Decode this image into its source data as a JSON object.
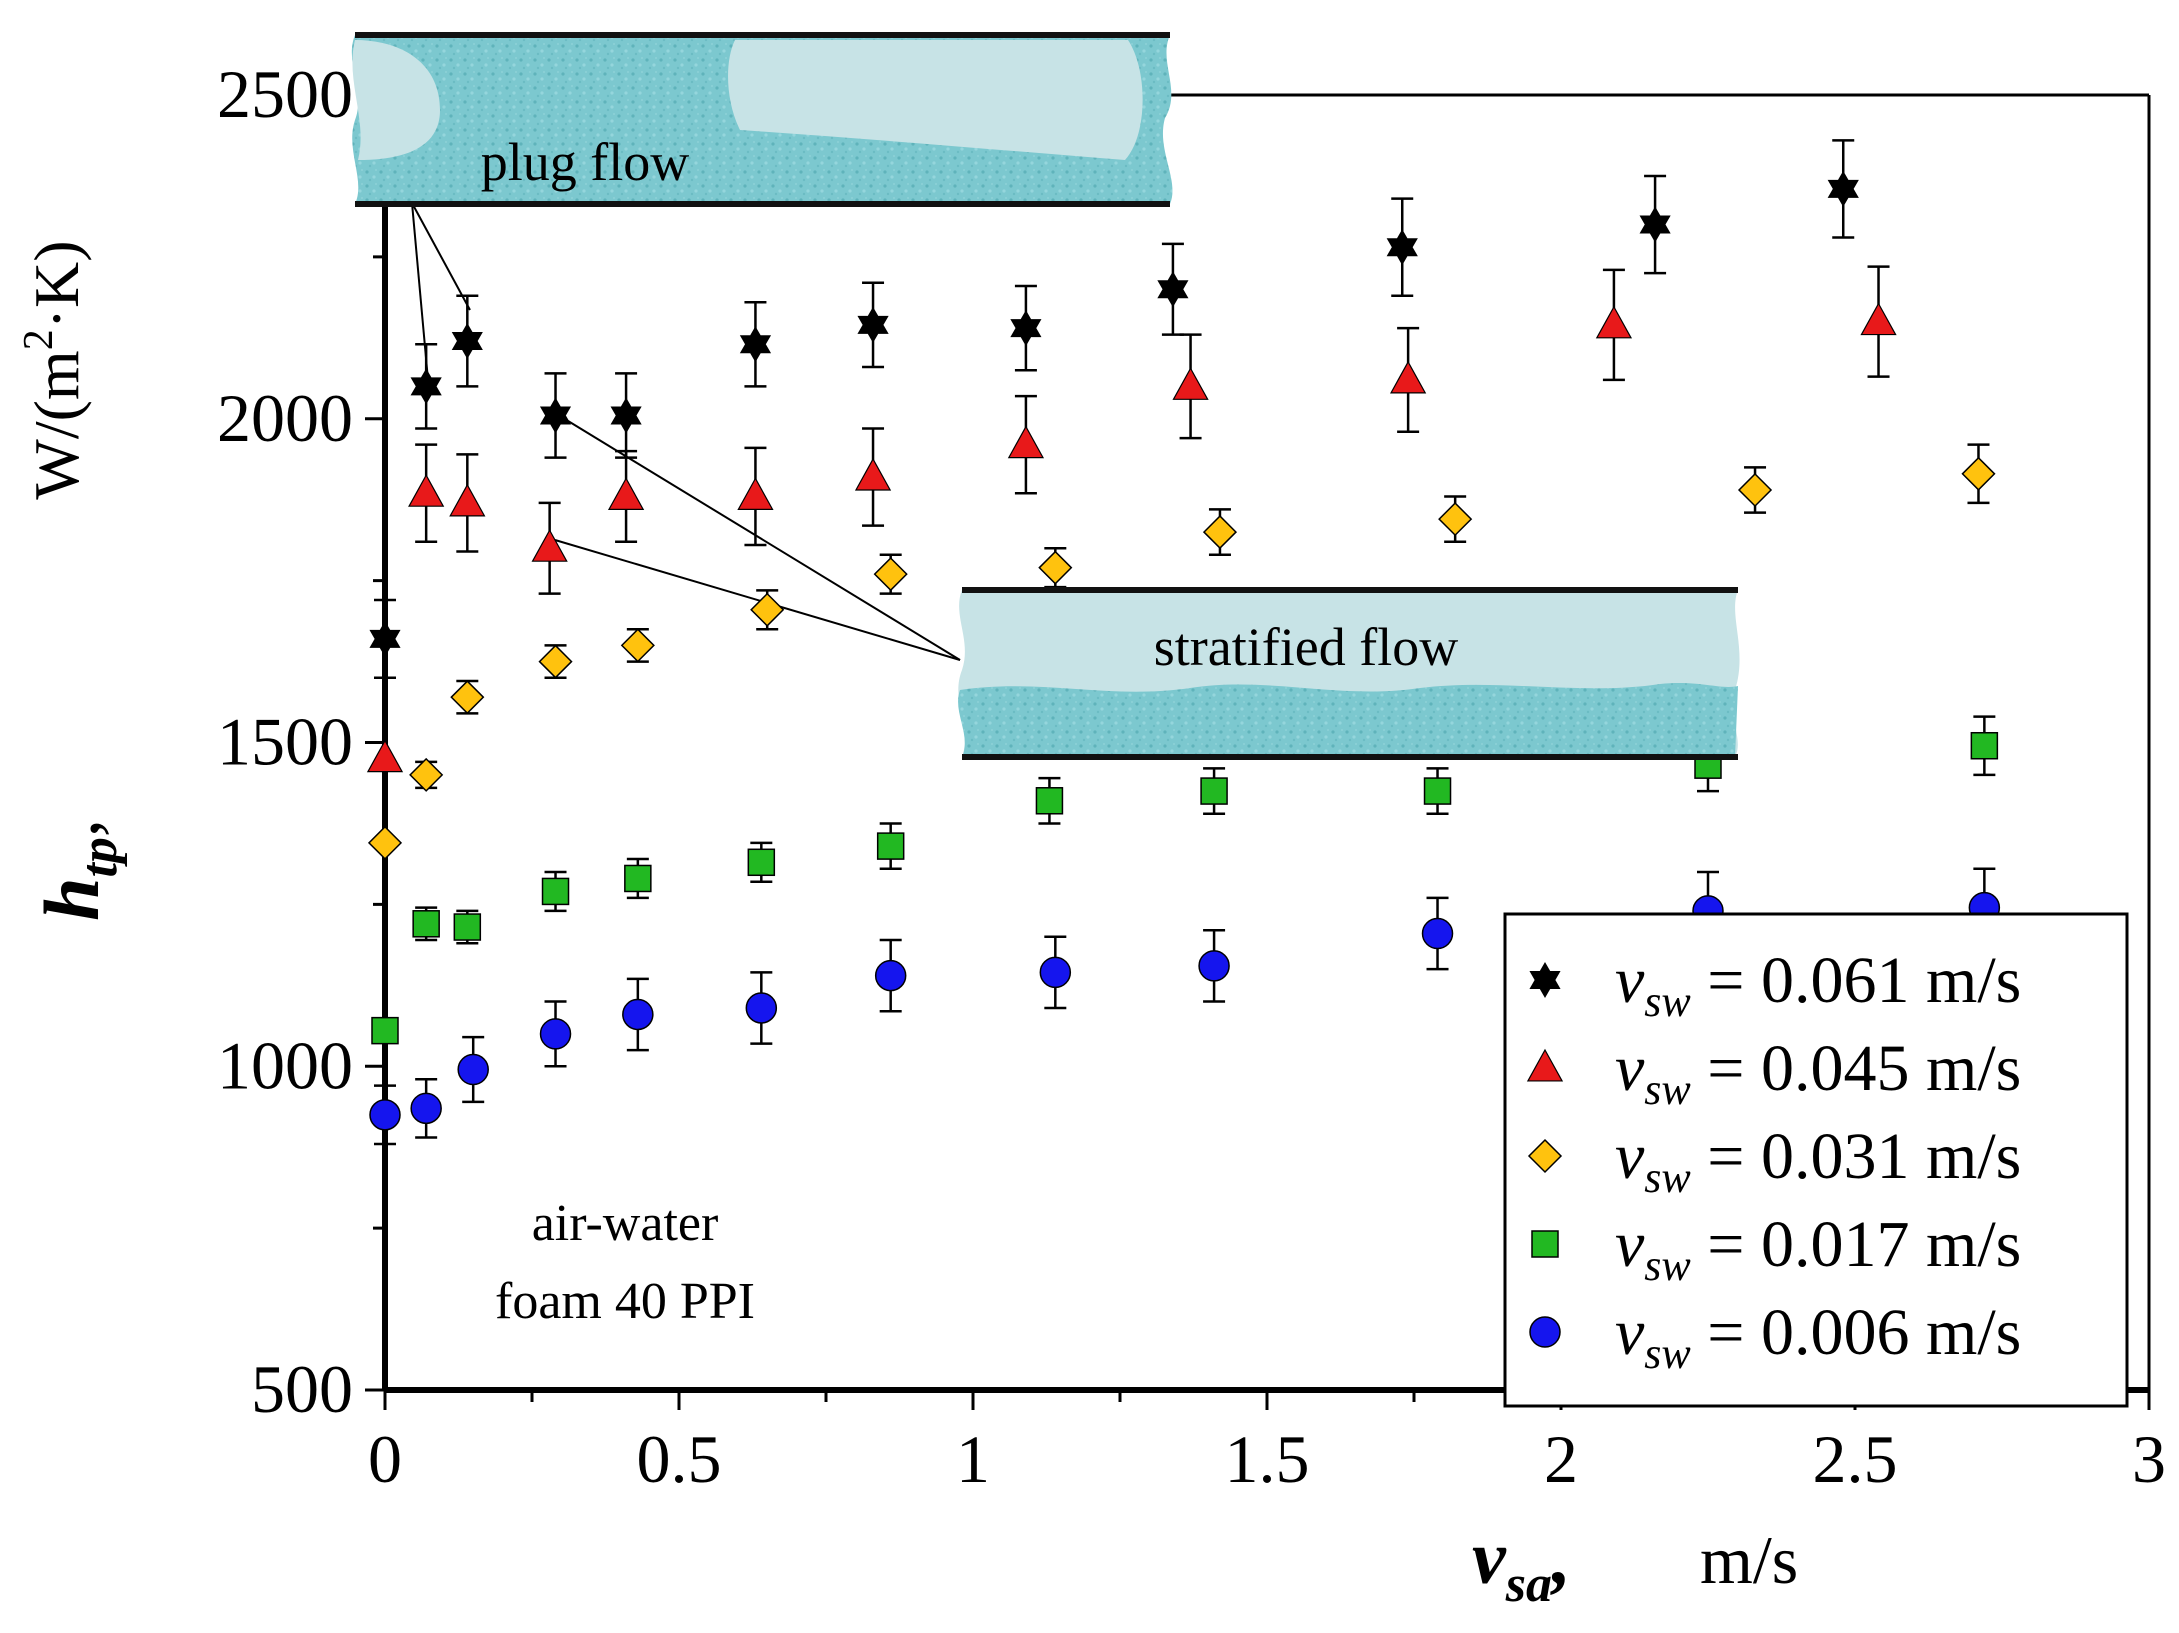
{
  "chart_data": {
    "type": "scatter",
    "title": "",
    "xlabel": {
      "symbol": "v",
      "subscript": "sa",
      "unit": "m/s"
    },
    "ylabel": {
      "symbol": "h",
      "subscript": "tp",
      "unit_prefix": "W/(m",
      "unit_sup": "2",
      "unit_suffix": "·K)"
    },
    "xlim": [
      0,
      3
    ],
    "ylim": [
      500,
      2500
    ],
    "x_ticks": [
      {
        "value": 0,
        "label": "0"
      },
      {
        "value": 0.5,
        "label": "0.5"
      },
      {
        "value": 1,
        "label": "1"
      },
      {
        "value": 1.5,
        "label": "1.5"
      },
      {
        "value": 2,
        "label": "2"
      },
      {
        "value": 2.5,
        "label": "2.5"
      },
      {
        "value": 3,
        "label": "3"
      }
    ],
    "y_ticks": [
      {
        "value": 500,
        "label": "500"
      },
      {
        "value": 1000,
        "label": "1000"
      },
      {
        "value": 1500,
        "label": "1500"
      },
      {
        "value": 2000,
        "label": "2000"
      },
      {
        "value": 2500,
        "label": "2500"
      }
    ],
    "x_minor_step": 0.25,
    "y_minor_step": 250,
    "grid": false,
    "legend_position": "bottom-right",
    "series": [
      {
        "name": "v_sw = 0.061 m/s",
        "legend": {
          "symbol": "v",
          "subscript": "sw",
          "text": " = 0.061 m/s"
        },
        "marker": "star",
        "color": "#000000",
        "x": [
          0,
          0.07,
          0.14,
          0.29,
          0.41,
          0.63,
          0.83,
          1.09,
          1.34,
          1.73,
          2.16,
          2.48
        ],
        "y": [
          1660,
          2050,
          2120,
          2005,
          2005,
          2115,
          2145,
          2140,
          2200,
          2265,
          2300,
          2355
        ],
        "err": [
          60,
          65,
          70,
          65,
          65,
          65,
          65,
          65,
          70,
          75,
          75,
          75
        ]
      },
      {
        "name": "v_sw = 0.045 m/s",
        "legend": {
          "symbol": "v",
          "subscript": "sw",
          "text": " = 0.045 m/s"
        },
        "marker": "triangle",
        "color": "#e8191a",
        "x": [
          0,
          0.07,
          0.14,
          0.28,
          0.41,
          0.63,
          0.83,
          1.09,
          1.37,
          1.74,
          2.09,
          2.54
        ],
        "y": [
          1475,
          1885,
          1870,
          1800,
          1880,
          1880,
          1910,
          1960,
          2050,
          2060,
          2145,
          2150
        ],
        "err": [
          0,
          75,
          75,
          70,
          70,
          75,
          75,
          75,
          80,
          80,
          85,
          85
        ]
      },
      {
        "name": "v_sw = 0.031 m/s",
        "legend": {
          "symbol": "v",
          "subscript": "sw",
          "text": " = 0.031 m/s"
        },
        "marker": "diamond",
        "color": "#ffc20e",
        "x": [
          0,
          0.07,
          0.14,
          0.29,
          0.43,
          0.65,
          0.86,
          1.14,
          1.42,
          1.82,
          2.33,
          2.71
        ],
        "y": [
          1345,
          1450,
          1570,
          1625,
          1650,
          1705,
          1760,
          1770,
          1825,
          1845,
          1890,
          1915
        ],
        "err": [
          0,
          20,
          25,
          25,
          25,
          30,
          30,
          30,
          35,
          35,
          35,
          45
        ]
      },
      {
        "name": "v_sw = 0.017 m/s",
        "legend": {
          "symbol": "v",
          "subscript": "sw",
          "text": " = 0.017 m/s"
        },
        "marker": "square",
        "color": "#22b822",
        "x": [
          0,
          0.07,
          0.14,
          0.29,
          0.43,
          0.64,
          0.86,
          1.13,
          1.41,
          1.79,
          2.25,
          2.72
        ],
        "y": [
          1055,
          1220,
          1215,
          1270,
          1290,
          1315,
          1340,
          1410,
          1425,
          1425,
          1465,
          1495
        ],
        "err": [
          0,
          25,
          25,
          30,
          30,
          30,
          35,
          35,
          35,
          35,
          40,
          45
        ]
      },
      {
        "name": "v_sw = 0.006 m/s",
        "legend": {
          "symbol": "v",
          "subscript": "sw",
          "text": " = 0.006 m/s"
        },
        "marker": "circle",
        "color": "#1515ee",
        "x": [
          0,
          0.07,
          0.15,
          0.29,
          0.43,
          0.64,
          0.86,
          1.14,
          1.41,
          1.79,
          2.25,
          2.72
        ],
        "y": [
          925,
          935,
          995,
          1050,
          1080,
          1090,
          1140,
          1145,
          1155,
          1205,
          1240,
          1245
        ],
        "err": [
          45,
          45,
          50,
          50,
          55,
          55,
          55,
          55,
          55,
          55,
          60,
          60
        ]
      }
    ],
    "annotations": {
      "condition_line1": "air-water",
      "condition_line2": "foam 40 PPI",
      "plug_flow_label": "plug flow",
      "stratified_flow_label": "stratified flow"
    }
  }
}
